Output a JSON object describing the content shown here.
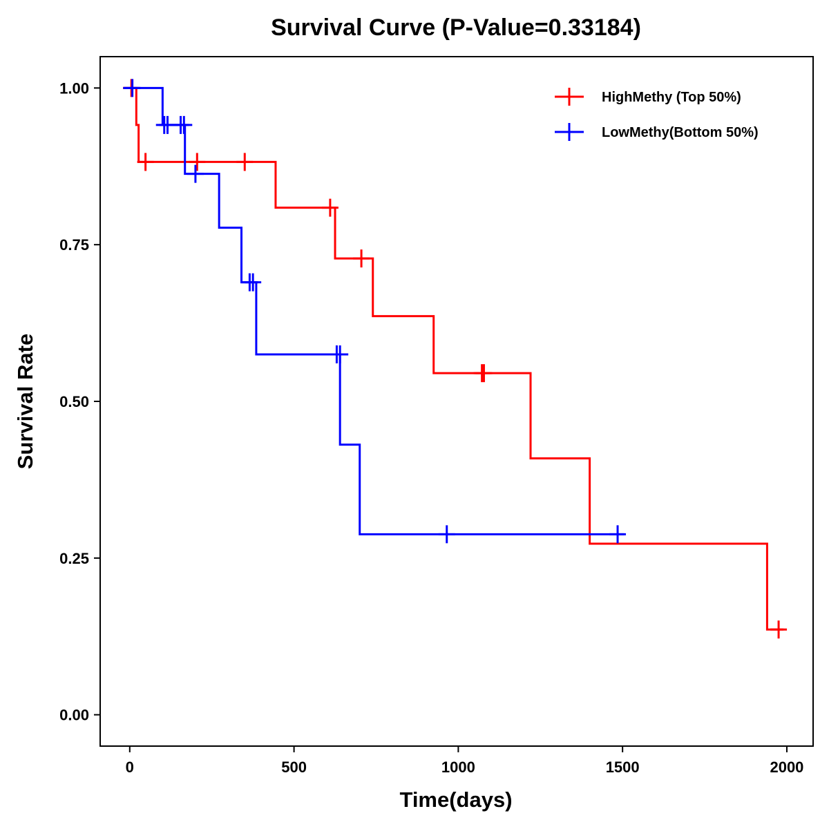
{
  "chart_data": {
    "type": "line",
    "subtype": "kaplan-meier-step",
    "title": "Survival Curve (P-Value=0.33184)",
    "xlabel": "Time(days)",
    "ylabel": "Survival Rate",
    "xlim": [
      -90,
      2080
    ],
    "ylim": [
      -0.05,
      1.05
    ],
    "xticks": [
      0,
      500,
      1000,
      1500,
      2000
    ],
    "xtick_labels": [
      "0",
      "500",
      "1000",
      "1500",
      "2000"
    ],
    "yticks": [
      0,
      0.25,
      0.5,
      0.75,
      1.0
    ],
    "ytick_labels": [
      "0.00",
      "0.25",
      "0.50",
      "0.75",
      "1.00"
    ],
    "grid": false,
    "legend_position": "top-right",
    "series": [
      {
        "name": "HighMethy (Top 50%)",
        "color": "#ff0000",
        "steps": [
          [
            -20,
            1.0
          ],
          [
            20,
            0.941
          ],
          [
            27,
            0.882
          ],
          [
            444,
            0.809
          ],
          [
            625,
            0.728
          ],
          [
            740,
            0.636
          ],
          [
            925,
            0.545
          ],
          [
            1220,
            0.409
          ],
          [
            1400,
            0.273
          ],
          [
            1940,
            0.136
          ],
          [
            1990,
            0.136
          ]
        ],
        "censored": [
          [
            5,
            1.0
          ],
          [
            48,
            0.882
          ],
          [
            205,
            0.882
          ],
          [
            350,
            0.882
          ],
          [
            610,
            0.809
          ],
          [
            705,
            0.728
          ],
          [
            1072,
            0.545
          ],
          [
            1078,
            0.545
          ],
          [
            1975,
            0.136
          ]
        ]
      },
      {
        "name": "LowMethy(Bottom 50%)",
        "color": "#0000ff",
        "steps": [
          [
            -20,
            1.0
          ],
          [
            100,
            0.941
          ],
          [
            168,
            0.863
          ],
          [
            272,
            0.777
          ],
          [
            340,
            0.69
          ],
          [
            385,
            0.575
          ],
          [
            640,
            0.431
          ],
          [
            700,
            0.288
          ],
          [
            1505,
            0.288
          ]
        ],
        "censored": [
          [
            8,
            1.0
          ],
          [
            105,
            0.941
          ],
          [
            115,
            0.941
          ],
          [
            155,
            0.941
          ],
          [
            165,
            0.941
          ],
          [
            200,
            0.863
          ],
          [
            365,
            0.69
          ],
          [
            375,
            0.69
          ],
          [
            630,
            0.575
          ],
          [
            640,
            0.575
          ],
          [
            965,
            0.288
          ],
          [
            1485,
            0.288
          ]
        ]
      }
    ]
  }
}
